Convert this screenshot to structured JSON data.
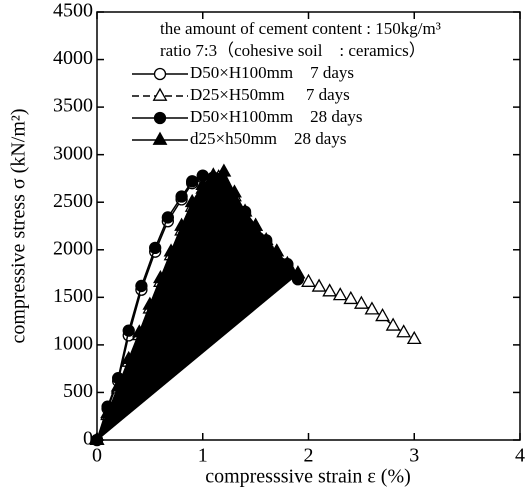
{
  "chart_data": {
    "type": "line",
    "xlabel": "compresssive strain ε (%)",
    "ylabel": "compressive stress σ (kN/m²)",
    "annotations": [
      "the amount of cement content : 150kg/m³",
      "ratio 7:3（cohesive soil　: ceramics）"
    ],
    "xlim": [
      0,
      4
    ],
    "xticks": [
      0,
      1,
      2,
      3,
      4
    ],
    "ylim": [
      0,
      4500
    ],
    "yticks": [
      0,
      500,
      1000,
      1500,
      2000,
      2500,
      3000,
      3500,
      4000,
      4500
    ],
    "series": [
      {
        "name": "D50×H100mm　7 days",
        "color": "#000000",
        "marker": "circle",
        "marker_fill": "#ffffff",
        "x": [
          0,
          0.1,
          0.2,
          0.3,
          0.42,
          0.55,
          0.67,
          0.8,
          0.9,
          1.0,
          1.1,
          1.2,
          1.4,
          1.6,
          1.8,
          1.9
        ],
        "values": [
          0,
          330,
          620,
          1100,
          1580,
          1980,
          2300,
          2530,
          2700,
          2760,
          2740,
          2630,
          2380,
          2080,
          1840,
          1690
        ]
      },
      {
        "name": "D25×H50mm　 7 days",
        "color": "#000000",
        "marker": "triangle",
        "marker_fill": "#ffffff",
        "dashed": true,
        "x": [
          0,
          0.1,
          0.2,
          0.3,
          0.4,
          0.5,
          0.6,
          0.7,
          0.8,
          0.9,
          1.0,
          1.15,
          1.3,
          1.5,
          1.7,
          1.9,
          2.0,
          2.1,
          2.2,
          2.3,
          2.4,
          2.5,
          2.6,
          2.7,
          2.8,
          2.9,
          3.0
        ],
        "values": [
          0,
          260,
          540,
          820,
          1100,
          1380,
          1660,
          1940,
          2200,
          2450,
          2640,
          2760,
          2560,
          2250,
          1980,
          1750,
          1660,
          1610,
          1560,
          1520,
          1480,
          1430,
          1370,
          1300,
          1200,
          1130,
          1060
        ]
      },
      {
        "name": "D50×H100mm　28 days",
        "color": "#000000",
        "marker": "circle",
        "marker_fill": "#000000",
        "x": [
          0,
          0.1,
          0.2,
          0.3,
          0.42,
          0.55,
          0.67,
          0.8,
          0.9,
          1.0,
          1.1,
          1.2,
          1.4,
          1.6,
          1.8,
          1.9
        ],
        "values": [
          0,
          350,
          650,
          1150,
          1620,
          2020,
          2340,
          2560,
          2720,
          2780,
          2760,
          2650,
          2400,
          2100,
          1850,
          1700
        ]
      },
      {
        "name": "d25×h50mm　28 days",
        "color": "#000000",
        "marker": "triangle",
        "marker_fill": "#000000",
        "area_fill": "#000000",
        "x": [
          0,
          0.1,
          0.2,
          0.3,
          0.4,
          0.5,
          0.6,
          0.7,
          0.8,
          0.9,
          1.0,
          1.1,
          1.2,
          1.3,
          1.4,
          1.5,
          1.6,
          1.7,
          1.8,
          1.9,
          0
        ],
        "values": [
          0,
          280,
          560,
          850,
          1130,
          1420,
          1700,
          1980,
          2250,
          2500,
          2680,
          2780,
          2820,
          2600,
          2400,
          2250,
          2100,
          1980,
          1850,
          1750,
          0
        ]
      }
    ]
  }
}
